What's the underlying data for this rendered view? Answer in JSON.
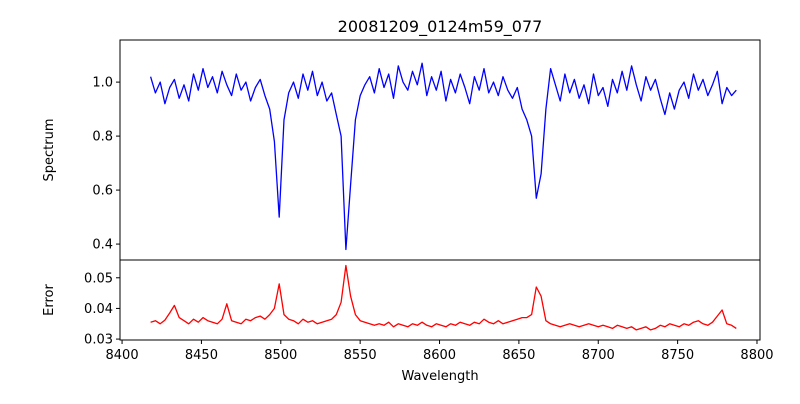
{
  "chart_data": [
    {
      "type": "line",
      "title": "20081209_0124m59_077",
      "xlabel": "",
      "ylabel": "Spectrum",
      "xlim": [
        8398.7,
        8801.9
      ],
      "ylim": [
        0.341,
        1.156
      ],
      "yticks": [
        0.4,
        0.6,
        0.8,
        1.0
      ],
      "ytick_labels": [
        "0.4",
        "0.6",
        "0.8",
        "1.0"
      ],
      "grid": false,
      "series": [
        {
          "name": "spectrum",
          "color": "#0000ff",
          "x_start": 8418,
          "x_step": 3,
          "values": [
            1.02,
            0.96,
            1.0,
            0.92,
            0.98,
            1.01,
            0.94,
            0.99,
            0.93,
            1.03,
            0.97,
            1.05,
            0.98,
            1.02,
            0.96,
            1.04,
            0.99,
            0.95,
            1.03,
            0.97,
            1.0,
            0.93,
            0.98,
            1.01,
            0.95,
            0.9,
            0.78,
            0.5,
            0.86,
            0.96,
            1.0,
            0.94,
            1.03,
            0.97,
            1.04,
            0.95,
            1.0,
            0.93,
            0.96,
            0.88,
            0.8,
            0.38,
            0.62,
            0.86,
            0.95,
            0.99,
            1.02,
            0.96,
            1.05,
            0.98,
            1.03,
            0.94,
            1.06,
            1.0,
            0.97,
            1.04,
            0.99,
            1.07,
            0.95,
            1.02,
            0.97,
            1.04,
            0.93,
            1.01,
            0.96,
            1.03,
            0.98,
            0.92,
            1.02,
            0.97,
            1.05,
            0.96,
            1.0,
            0.95,
            1.02,
            0.97,
            0.94,
            0.98,
            0.9,
            0.86,
            0.8,
            0.57,
            0.66,
            0.9,
            1.05,
            0.99,
            0.93,
            1.03,
            0.96,
            1.01,
            0.94,
            0.99,
            0.92,
            1.03,
            0.95,
            0.98,
            0.91,
            1.01,
            0.96,
            1.04,
            0.97,
            1.06,
            0.99,
            0.93,
            1.02,
            0.97,
            1.01,
            0.94,
            0.88,
            0.96,
            0.9,
            0.97,
            1.0,
            0.94,
            1.03,
            0.97,
            1.01,
            0.95,
            0.99,
            1.04,
            0.92,
            0.98,
            0.95,
            0.97
          ]
        }
      ]
    },
    {
      "type": "line",
      "xlabel": "Wavelength",
      "ylabel": "Error",
      "xlim": [
        8398.7,
        8801.9
      ],
      "ylim": [
        0.0297,
        0.0558
      ],
      "xticks": [
        8400,
        8450,
        8500,
        8550,
        8600,
        8650,
        8700,
        8750,
        8800
      ],
      "xtick_labels": [
        "8400",
        "8450",
        "8500",
        "8550",
        "8600",
        "8650",
        "8700",
        "8750",
        "8800"
      ],
      "yticks": [
        0.03,
        0.04,
        0.05
      ],
      "ytick_labels": [
        "0.03",
        "0.04",
        "0.05"
      ],
      "grid": false,
      "series": [
        {
          "name": "error",
          "color": "#ff0000",
          "x_start": 8418,
          "x_step": 3,
          "values": [
            0.0355,
            0.036,
            0.035,
            0.0362,
            0.0385,
            0.041,
            0.037,
            0.036,
            0.035,
            0.0365,
            0.0355,
            0.037,
            0.036,
            0.0355,
            0.035,
            0.0365,
            0.0415,
            0.036,
            0.0355,
            0.035,
            0.0365,
            0.036,
            0.037,
            0.0375,
            0.0365,
            0.038,
            0.04,
            0.048,
            0.038,
            0.0365,
            0.036,
            0.035,
            0.0365,
            0.0355,
            0.036,
            0.035,
            0.0355,
            0.036,
            0.0365,
            0.038,
            0.042,
            0.054,
            0.044,
            0.038,
            0.036,
            0.0355,
            0.035,
            0.0345,
            0.035,
            0.0345,
            0.0355,
            0.034,
            0.035,
            0.0345,
            0.034,
            0.035,
            0.0345,
            0.0355,
            0.0345,
            0.034,
            0.035,
            0.0345,
            0.034,
            0.035,
            0.0345,
            0.0355,
            0.035,
            0.0345,
            0.0355,
            0.035,
            0.0365,
            0.0355,
            0.035,
            0.036,
            0.035,
            0.0355,
            0.036,
            0.0365,
            0.037,
            0.037,
            0.038,
            0.047,
            0.044,
            0.036,
            0.035,
            0.0345,
            0.034,
            0.0345,
            0.035,
            0.0345,
            0.034,
            0.0345,
            0.035,
            0.0345,
            0.034,
            0.0345,
            0.034,
            0.0335,
            0.0345,
            0.034,
            0.0335,
            0.034,
            0.033,
            0.0335,
            0.034,
            0.033,
            0.0335,
            0.0345,
            0.034,
            0.035,
            0.0345,
            0.034,
            0.035,
            0.0345,
            0.0355,
            0.036,
            0.035,
            0.0345,
            0.0355,
            0.0375,
            0.0395,
            0.035,
            0.0345,
            0.0335
          ]
        }
      ]
    }
  ]
}
